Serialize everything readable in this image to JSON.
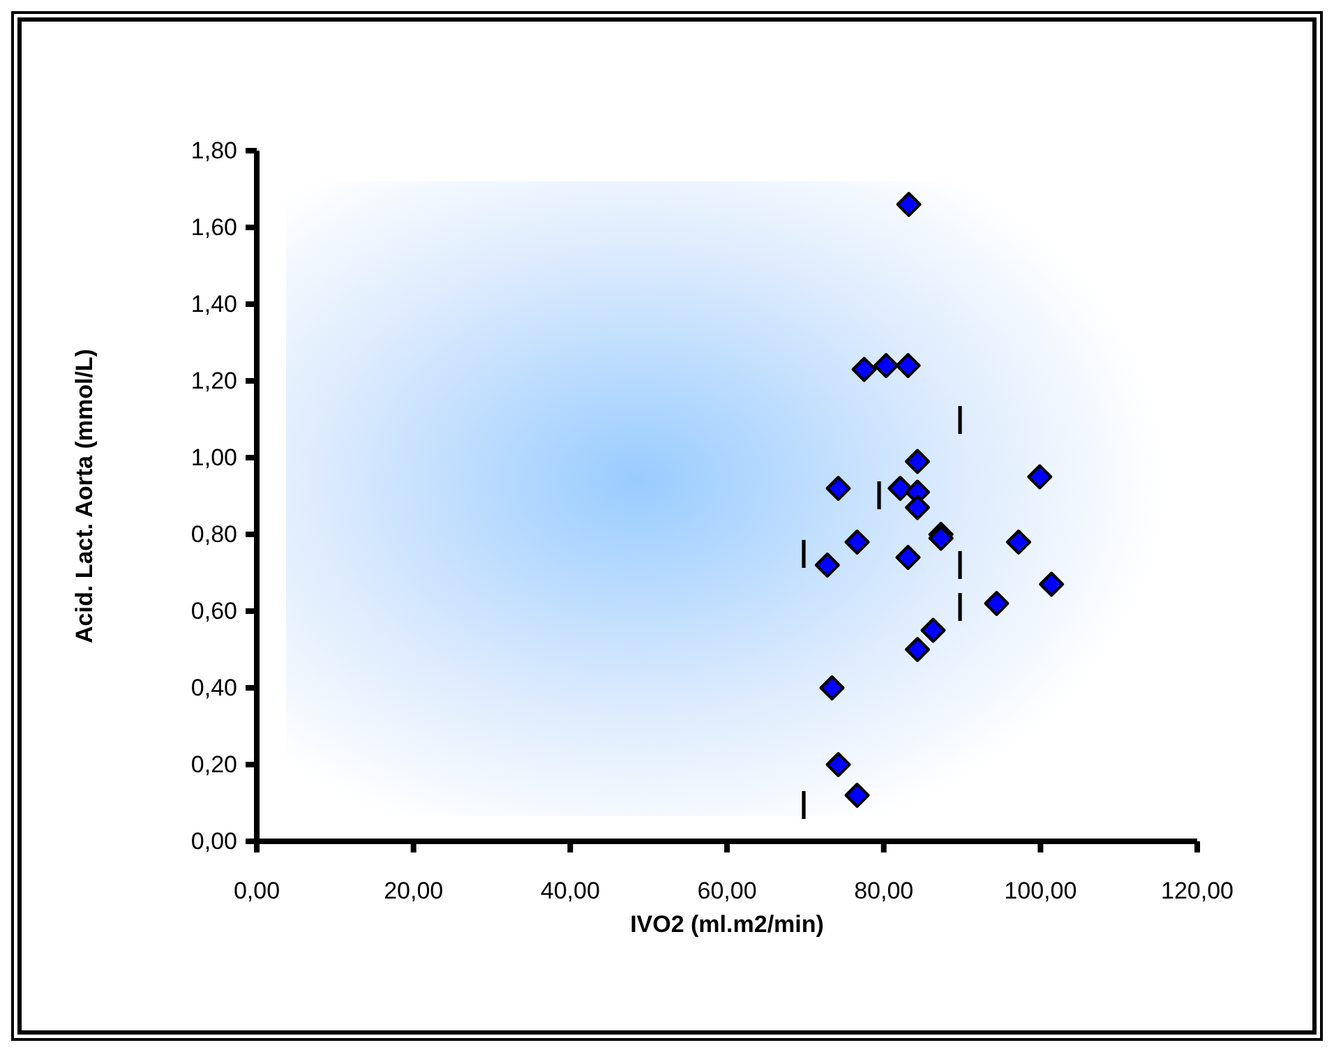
{
  "chart_data": {
    "type": "scatter",
    "xlabel": "IVO2 (ml.m2/min)",
    "ylabel": "Acid. Lact. Aorta (mmol/L)",
    "xlim": [
      0,
      120
    ],
    "xticks": [
      {
        "value": 0,
        "label": "0,00"
      },
      {
        "value": 20,
        "label": "20,00"
      },
      {
        "value": 40,
        "label": "40,00"
      },
      {
        "value": 60,
        "label": "60,00"
      },
      {
        "value": 80,
        "label": "80,00"
      },
      {
        "value": 100,
        "label": "100,00"
      },
      {
        "value": 120,
        "label": "120,00"
      }
    ],
    "ylim": [
      0,
      1.8
    ],
    "yticks": [
      {
        "value": 0,
        "label": "0,00"
      },
      {
        "value": 0.2,
        "label": "0,20"
      },
      {
        "value": 0.4,
        "label": "0,40"
      },
      {
        "value": 0.6,
        "label": "0,60"
      },
      {
        "value": 0.8,
        "label": "0,80"
      },
      {
        "value": 1,
        "label": "1,00"
      },
      {
        "value": 1.2,
        "label": "1,20"
      },
      {
        "value": 1.4,
        "label": "1,40"
      },
      {
        "value": 1.6,
        "label": "1,60"
      },
      {
        "value": 1.8,
        "label": "1,80"
      }
    ],
    "series": [
      {
        "color": "#0000ff",
        "marker": "diamond",
        "x": [
          83.2,
          77.5,
          80.3,
          83.1,
          99.9,
          84.3,
          74.2,
          82.1,
          84.3,
          84.3,
          76.6,
          87.3,
          87.3,
          97.2,
          72.8,
          83.1,
          101.4,
          94.4,
          86.3,
          84.3,
          73.4,
          74.2,
          76.6
        ],
        "values": [
          1.66,
          1.23,
          1.24,
          1.24,
          0.95,
          0.99,
          0.92,
          0.92,
          0.91,
          0.87,
          0.78,
          0.8,
          0.79,
          0.78,
          0.72,
          0.74,
          0.67,
          0.62,
          0.55,
          0.5,
          0.4,
          0.2,
          0.12
        ]
      }
    ]
  }
}
